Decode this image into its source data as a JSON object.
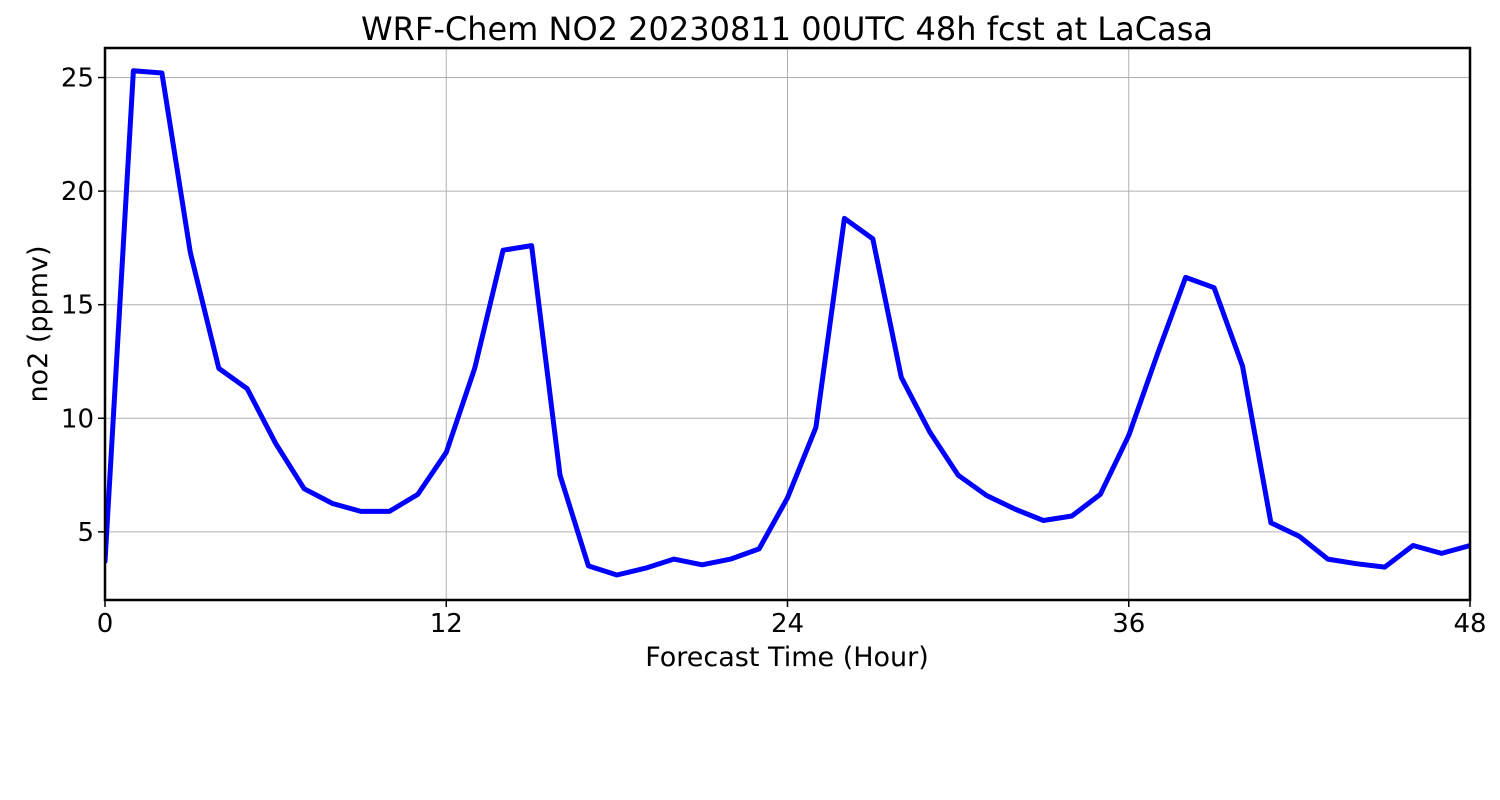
{
  "chart_data": {
    "type": "line",
    "title": "WRF-Chem NO2  20230811 00UTC 48h fcst at LaCasa",
    "xlabel": "Forecast Time (Hour)",
    "ylabel": "no2  (ppmv)",
    "xlim": [
      0,
      48
    ],
    "ylim": [
      2,
      26.3
    ],
    "x_ticks": [
      0,
      12,
      24,
      36,
      48
    ],
    "y_ticks": [
      5,
      10,
      15,
      20,
      25
    ],
    "grid": true,
    "series": [
      {
        "color": "#0000ff",
        "x": [
          0,
          1,
          2,
          3,
          4,
          5,
          6,
          7,
          8,
          9,
          10,
          11,
          12,
          13,
          14,
          15,
          16,
          17,
          18,
          19,
          20,
          21,
          22,
          23,
          24,
          25,
          26,
          27,
          28,
          29,
          30,
          31,
          32,
          33,
          34,
          35,
          36,
          37,
          38,
          39,
          40,
          41,
          42,
          43,
          44,
          45,
          46,
          47,
          48
        ],
        "values": [
          3.7,
          25.3,
          25.2,
          17.3,
          12.2,
          11.3,
          8.9,
          6.9,
          6.25,
          5.9,
          5.9,
          6.65,
          8.5,
          12.2,
          17.4,
          17.6,
          7.5,
          3.5,
          3.1,
          3.4,
          3.8,
          3.55,
          3.8,
          4.25,
          6.5,
          9.6,
          18.8,
          17.9,
          11.8,
          9.4,
          7.5,
          6.6,
          6.0,
          5.5,
          5.7,
          6.65,
          9.25,
          12.8,
          16.2,
          15.75,
          12.3,
          5.4,
          4.8,
          3.8,
          3.6,
          3.45,
          4.4,
          4.05,
          4.4
        ]
      }
    ]
  }
}
